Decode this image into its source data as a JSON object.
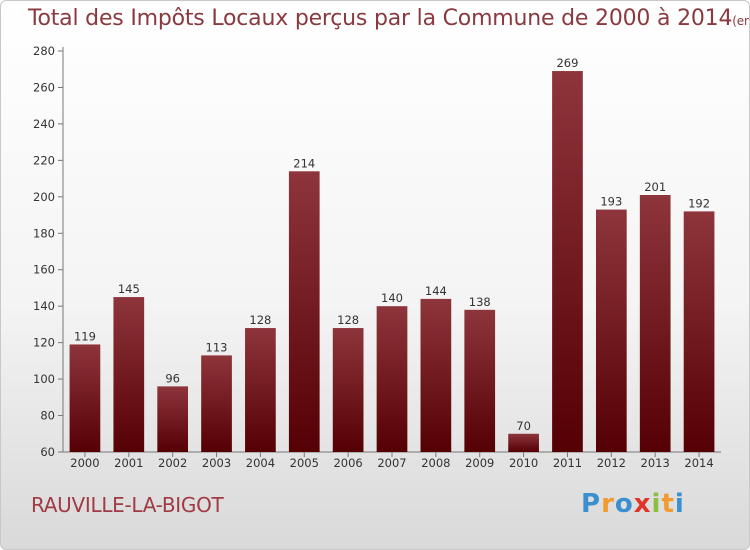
{
  "header": {
    "title": "Total des Impôts Locaux perçus par la Commune de 2000 à 2014",
    "unit": "(en milliers d'€)"
  },
  "commune": "RAUVILLE-LA-BIGOT",
  "logo": {
    "text": "Proxiti",
    "letters": [
      "P",
      "r",
      "o",
      "x",
      "i",
      "t",
      "i"
    ],
    "colors": [
      "#3a8fd1",
      "#f29a2e",
      "#3a8fd1",
      "#e0352b",
      "#8cbf3f",
      "#f29a2e",
      "#3a8fd1"
    ]
  },
  "colors": {
    "bar_top": "#8e353c",
    "bar_bottom": "#550004",
    "title": "#8a3a3f"
  },
  "chart_data": {
    "type": "bar",
    "title": "Total des Impôts Locaux perçus par la Commune de 2000 à 2014",
    "xlabel": "",
    "ylabel": "",
    "categories": [
      "2000",
      "2001",
      "2002",
      "2003",
      "2004",
      "2005",
      "2006",
      "2007",
      "2008",
      "2009",
      "2010",
      "2011",
      "2012",
      "2013",
      "2014"
    ],
    "values": [
      119,
      145,
      96,
      113,
      128,
      214,
      128,
      140,
      144,
      138,
      70,
      269,
      193,
      201,
      192
    ],
    "ylim": [
      60,
      280
    ],
    "yticks": [
      60,
      80,
      100,
      120,
      140,
      160,
      180,
      200,
      220,
      240,
      260,
      280
    ],
    "grid": false
  }
}
